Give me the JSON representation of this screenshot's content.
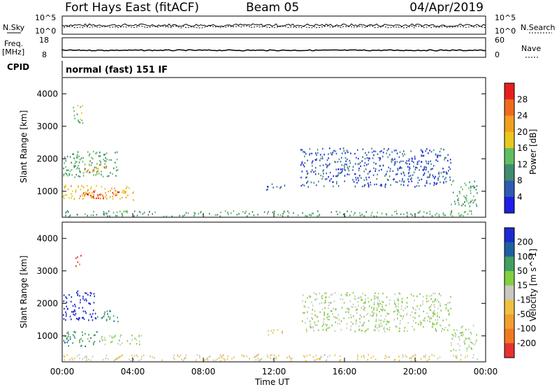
{
  "header": {
    "station": "Fort Hays East (fitACF)",
    "beam": "Beam 05",
    "date": "04/Apr/2019"
  },
  "strips": {
    "nsky_label": "N.Sky",
    "nsearch_label": "N.Search",
    "nsky_ticks": [
      "10^5",
      "10^0"
    ],
    "nsearch_ticks": [
      "10^5",
      "10^0"
    ],
    "freq_label_1": "Freq.",
    "freq_label_2": "[MHz]",
    "freq_ticks": [
      "18",
      "8"
    ],
    "nave_label": "Nave",
    "nave_ticks": [
      "60",
      "0"
    ],
    "cpid_label": "CPID",
    "cpid_value": "normal (fast) 151 IF"
  },
  "colors": {
    "power": [
      "#1e1ee6",
      "#2f5bb3",
      "#3f8c6e",
      "#5fbf5f",
      "#e8c81e",
      "#f0a01e",
      "#f06a1e",
      "#e81e1e"
    ],
    "velocity": [
      "#1e2ad0",
      "#2060a0",
      "#40a060",
      "#80d040",
      "#c8c8c0",
      "#f0c040",
      "#f0a030",
      "#f07a20",
      "#e83030"
    ]
  },
  "chart_data": [
    {
      "type": "heatmap",
      "quantity": "power",
      "title": "",
      "xlabel": "",
      "ylabel": "Slant Range [km]",
      "xlim": [
        "00:00",
        "24:00"
      ],
      "x_ticks": [
        "00:00",
        "04:00",
        "08:00",
        "12:00",
        "16:00",
        "20:00",
        "00:00"
      ],
      "ylim": [
        200,
        4500
      ],
      "y_ticks": [
        1000,
        2000,
        3000,
        4000
      ],
      "colorbar_label": "Power [dB]",
      "colorbar_ticks": [
        4,
        8,
        12,
        16,
        20,
        24,
        28
      ],
      "colorbar_range": [
        0,
        32
      ],
      "echo_regions": [
        {
          "t0": 0.0,
          "t1": 4.1,
          "r0": 750,
          "r1": 1200,
          "value": 20
        },
        {
          "t0": 1.0,
          "t1": 3.3,
          "r0": 800,
          "r1": 1050,
          "value": 28
        },
        {
          "t0": 0.0,
          "t1": 3.2,
          "r0": 1450,
          "r1": 2250,
          "value": 12
        },
        {
          "t0": 1.2,
          "t1": 2.5,
          "r0": 1600,
          "r1": 1850,
          "value": 22
        },
        {
          "t0": 0.6,
          "t1": 1.2,
          "r0": 3100,
          "r1": 3700,
          "value": 14
        },
        {
          "t0": 0.0,
          "t1": 23.5,
          "r0": 250,
          "r1": 420,
          "value": 12
        },
        {
          "t0": 11.5,
          "t1": 12.6,
          "r0": 1050,
          "r1": 1250,
          "value": 6
        },
        {
          "t0": 13.5,
          "t1": 22.0,
          "r0": 1150,
          "r1": 2350,
          "value": 6
        },
        {
          "t0": 22.0,
          "t1": 23.5,
          "r0": 550,
          "r1": 1350,
          "value": 12
        }
      ]
    },
    {
      "type": "heatmap",
      "quantity": "velocity",
      "title": "",
      "xlabel": "Time UT",
      "ylabel": "Slant Range [km]",
      "xlim": [
        "00:00",
        "24:00"
      ],
      "x_ticks": [
        "00:00",
        "04:00",
        "08:00",
        "12:00",
        "16:00",
        "20:00",
        "00:00"
      ],
      "ylim": [
        200,
        4500
      ],
      "y_ticks": [
        1000,
        2000,
        3000,
        4000
      ],
      "colorbar_label": "Velocity [m s^-1]",
      "colorbar_ticks": [
        200,
        100,
        50,
        15,
        -15,
        -50,
        -100,
        -200
      ],
      "echo_regions": [
        {
          "t0": 0.0,
          "t1": 1.9,
          "r0": 1500,
          "r1": 2400,
          "value": 220
        },
        {
          "t0": 1.9,
          "t1": 3.2,
          "r0": 1450,
          "r1": 1800,
          "value": 60
        },
        {
          "t0": 0.0,
          "t1": 2.1,
          "r0": 700,
          "r1": 1150,
          "value": 60
        },
        {
          "t0": 2.1,
          "t1": 4.5,
          "r0": 750,
          "r1": 1050,
          "value": 0
        },
        {
          "t0": 0.7,
          "t1": 1.1,
          "r0": 3100,
          "r1": 3500,
          "value": -250
        },
        {
          "t0": 0.0,
          "t1": 23.5,
          "r0": 250,
          "r1": 450,
          "value": -30
        },
        {
          "t0": 11.5,
          "t1": 12.6,
          "r0": 1050,
          "r1": 1250,
          "value": -40
        },
        {
          "t0": 13.5,
          "t1": 22.0,
          "r0": 1150,
          "r1": 2350,
          "value": 0
        },
        {
          "t0": 22.0,
          "t1": 23.5,
          "r0": 550,
          "r1": 1350,
          "value": 0
        }
      ]
    }
  ]
}
